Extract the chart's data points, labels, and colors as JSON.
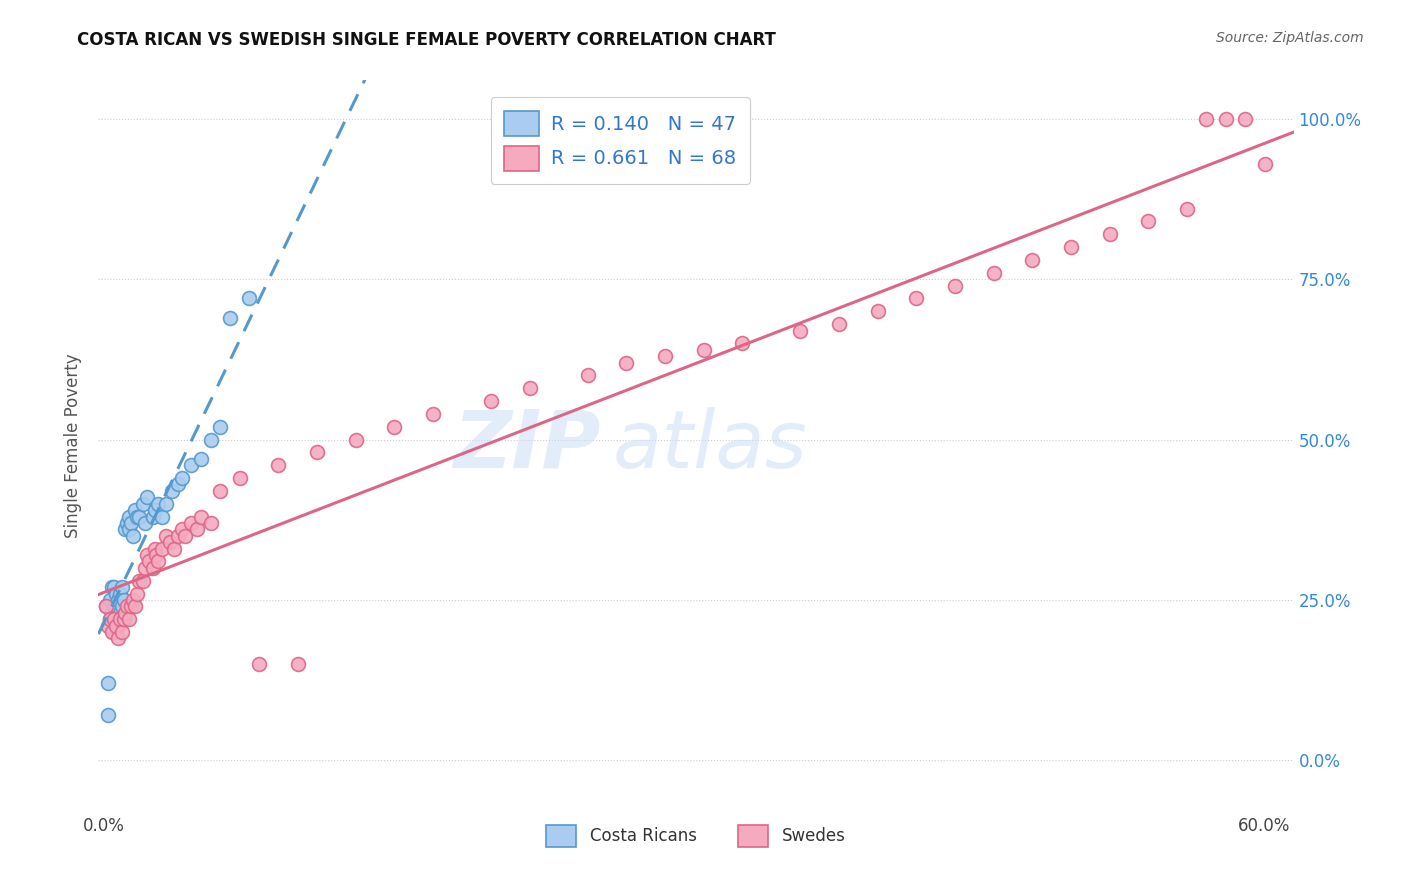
{
  "title": "COSTA RICAN VS SWEDISH SINGLE FEMALE POVERTY CORRELATION CHART",
  "source": "Source: ZipAtlas.com",
  "ylabel_label": "Single Female Poverty",
  "xmin": -0.003,
  "xmax": 0.615,
  "ymin": -0.08,
  "ymax": 1.06,
  "watermark_line1": "ZIP",
  "watermark_line2": "atlas",
  "costa_rican_R": 0.14,
  "costa_rican_N": 47,
  "swedes_R": 0.661,
  "swedes_N": 68,
  "costa_rican_color": "#aaccf0",
  "costa_rican_edge": "#5599cc",
  "swedes_color": "#f5aac0",
  "swedes_edge": "#dd6688",
  "trend_cr_color": "#5599cc",
  "trend_sw_color": "#dd6688",
  "x_tick_vals": [
    0.0,
    0.6
  ],
  "x_tick_labels": [
    "0.0%",
    "60.0%"
  ],
  "y_tick_vals": [
    0.0,
    0.25,
    0.5,
    0.75,
    1.0
  ],
  "y_tick_labels": [
    "0.0%",
    "25.0%",
    "50.0%",
    "75.0%",
    "100.0%"
  ],
  "costa_ricans_x": [
    0.001,
    0.002,
    0.002,
    0.003,
    0.003,
    0.004,
    0.004,
    0.005,
    0.005,
    0.005,
    0.006,
    0.006,
    0.006,
    0.007,
    0.007,
    0.008,
    0.008,
    0.009,
    0.009,
    0.01,
    0.01,
    0.011,
    0.012,
    0.013,
    0.013,
    0.014,
    0.015,
    0.016,
    0.017,
    0.018,
    0.02,
    0.021,
    0.022,
    0.025,
    0.026,
    0.028,
    0.03,
    0.032,
    0.035,
    0.038,
    0.04,
    0.045,
    0.05,
    0.055,
    0.06,
    0.065,
    0.075
  ],
  "costa_ricans_y": [
    0.24,
    0.07,
    0.12,
    0.22,
    0.25,
    0.23,
    0.27,
    0.2,
    0.24,
    0.27,
    0.22,
    0.24,
    0.26,
    0.21,
    0.25,
    0.23,
    0.26,
    0.24,
    0.27,
    0.22,
    0.25,
    0.36,
    0.37,
    0.36,
    0.38,
    0.37,
    0.35,
    0.39,
    0.38,
    0.38,
    0.4,
    0.37,
    0.41,
    0.38,
    0.39,
    0.4,
    0.38,
    0.4,
    0.42,
    0.43,
    0.44,
    0.46,
    0.47,
    0.5,
    0.52,
    0.69,
    0.72
  ],
  "swedes_x": [
    0.001,
    0.002,
    0.003,
    0.004,
    0.005,
    0.006,
    0.007,
    0.008,
    0.009,
    0.01,
    0.011,
    0.012,
    0.013,
    0.014,
    0.015,
    0.016,
    0.017,
    0.018,
    0.02,
    0.021,
    0.022,
    0.023,
    0.025,
    0.026,
    0.027,
    0.028,
    0.03,
    0.032,
    0.034,
    0.036,
    0.038,
    0.04,
    0.042,
    0.045,
    0.048,
    0.05,
    0.055,
    0.06,
    0.07,
    0.08,
    0.09,
    0.1,
    0.11,
    0.13,
    0.15,
    0.17,
    0.2,
    0.22,
    0.25,
    0.27,
    0.29,
    0.31,
    0.33,
    0.36,
    0.38,
    0.4,
    0.42,
    0.44,
    0.46,
    0.48,
    0.5,
    0.52,
    0.54,
    0.56,
    0.57,
    0.58,
    0.59,
    0.6
  ],
  "swedes_y": [
    0.24,
    0.21,
    0.22,
    0.2,
    0.22,
    0.21,
    0.19,
    0.22,
    0.2,
    0.22,
    0.23,
    0.24,
    0.22,
    0.24,
    0.25,
    0.24,
    0.26,
    0.28,
    0.28,
    0.3,
    0.32,
    0.31,
    0.3,
    0.33,
    0.32,
    0.31,
    0.33,
    0.35,
    0.34,
    0.33,
    0.35,
    0.36,
    0.35,
    0.37,
    0.36,
    0.38,
    0.37,
    0.42,
    0.44,
    0.15,
    0.46,
    0.15,
    0.48,
    0.5,
    0.52,
    0.54,
    0.56,
    0.58,
    0.6,
    0.62,
    0.63,
    0.64,
    0.65,
    0.67,
    0.68,
    0.7,
    0.72,
    0.74,
    0.76,
    0.78,
    0.8,
    0.82,
    0.84,
    0.86,
    1.0,
    1.0,
    1.0,
    0.93
  ]
}
